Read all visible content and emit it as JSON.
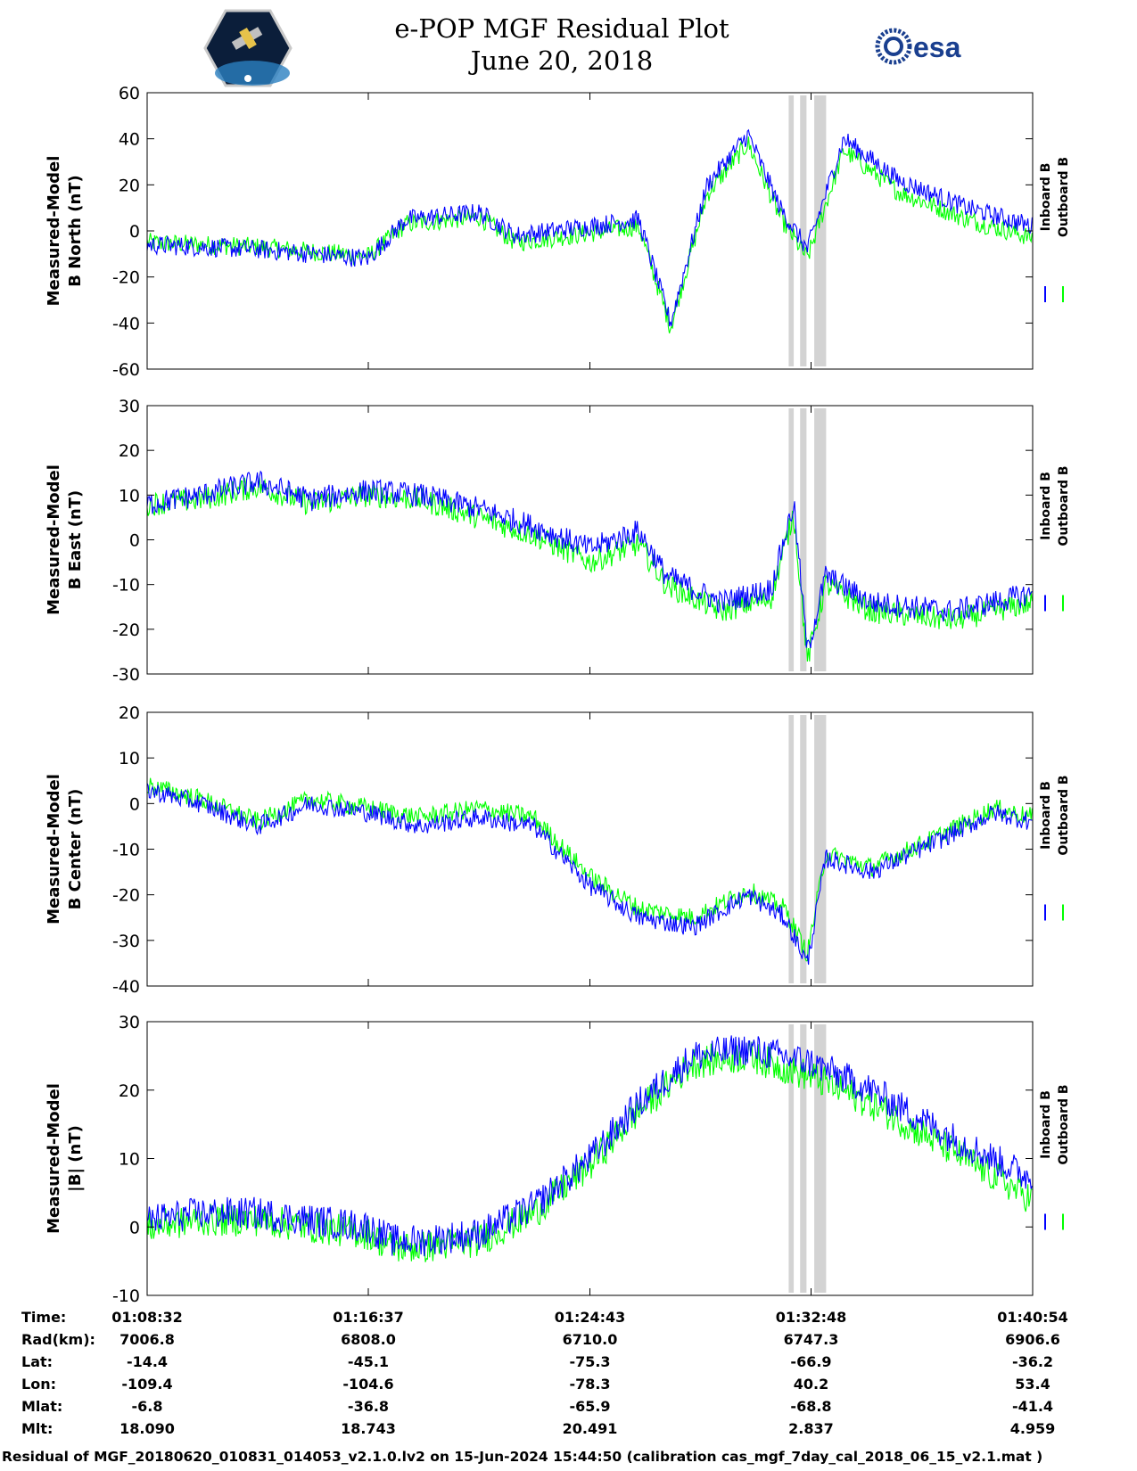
{
  "title": {
    "line1": "e-POP MGF Residual Plot",
    "line2": "June 20, 2018"
  },
  "logos": {
    "left": "cassiope-mission-logo",
    "right_text": "esa"
  },
  "colors": {
    "inboard": "#0000ff",
    "outboard": "#00ff00",
    "shade": "#d3d3d3"
  },
  "chart_data": [
    {
      "type": "line",
      "ylabel": [
        "Measured-Model",
        "B North (nT)"
      ],
      "ylim": [
        -60,
        60
      ],
      "yticks": [
        "60",
        "40",
        "20",
        "0",
        "-20",
        "-40",
        "-60"
      ],
      "legend": [
        "Inboard B",
        "Outboard B"
      ],
      "x": [
        "01:08:32",
        "01:12:35",
        "01:16:37",
        "01:18:00",
        "01:20:40",
        "01:22:00",
        "01:24:43",
        "01:26:30",
        "01:27:40",
        "01:29:00",
        "01:30:30",
        "01:31:40",
        "01:32:40",
        "01:34:00",
        "01:36:00",
        "01:38:30",
        "01:40:54"
      ],
      "series": [
        {
          "name": "Inboard B",
          "values": [
            -6,
            -8,
            -12,
            5,
            8,
            -2,
            2,
            5,
            -40,
            20,
            42,
            10,
            -8,
            40,
            22,
            10,
            2
          ]
        },
        {
          "name": "Outboard B",
          "values": [
            -5,
            -7,
            -11,
            3,
            6,
            -5,
            -1,
            2,
            -42,
            16,
            38,
            6,
            -12,
            35,
            17,
            5,
            -3
          ]
        }
      ],
      "shaded_intervals": [
        [
          "01:31:59",
          "01:32:10"
        ],
        [
          "01:32:24",
          "01:32:38"
        ],
        [
          "01:32:55",
          "01:33:21"
        ]
      ]
    },
    {
      "type": "line",
      "ylabel": [
        "Measured-Model",
        "B East (nT)"
      ],
      "ylim": [
        -30,
        30
      ],
      "yticks": [
        "30",
        "20",
        "10",
        "0",
        "-10",
        "-20",
        "-30"
      ],
      "legend": [
        "Inboard B",
        "Outboard B"
      ],
      "x": [
        "01:08:32",
        "01:10:30",
        "01:12:35",
        "01:14:30",
        "01:16:37",
        "01:18:30",
        "01:20:40",
        "01:22:40",
        "01:24:43",
        "01:26:30",
        "01:27:30",
        "01:29:30",
        "01:31:20",
        "01:32:10",
        "01:32:40",
        "01:33:20",
        "01:35:00",
        "01:38:00",
        "01:40:54"
      ],
      "series": [
        {
          "name": "Inboard B",
          "values": [
            8,
            10,
            13,
            9,
            11,
            10,
            7,
            3,
            -2,
            2,
            -8,
            -14,
            -11,
            8,
            -25,
            -8,
            -14,
            -16,
            -12
          ]
        },
        {
          "name": "Outboard B",
          "values": [
            8,
            9,
            12,
            8,
            10,
            9,
            5,
            1,
            -5,
            -1,
            -10,
            -16,
            -13,
            6,
            -27,
            -10,
            -16,
            -18,
            -14
          ]
        }
      ],
      "shaded_intervals": [
        [
          "01:31:59",
          "01:32:10"
        ],
        [
          "01:32:24",
          "01:32:38"
        ],
        [
          "01:32:55",
          "01:33:21"
        ]
      ]
    },
    {
      "type": "line",
      "ylabel": [
        "Measured-Model",
        "B Center (nT)"
      ],
      "ylim": [
        -40,
        20
      ],
      "yticks": [
        "20",
        "10",
        "0",
        "-10",
        "-20",
        "-30",
        "-40"
      ],
      "legend": [
        "Inboard B",
        "Outboard B"
      ],
      "x": [
        "01:08:32",
        "01:10:30",
        "01:12:35",
        "01:14:30",
        "01:16:37",
        "01:18:30",
        "01:20:40",
        "01:22:40",
        "01:24:43",
        "01:26:30",
        "01:28:30",
        "01:30:30",
        "01:31:50",
        "01:32:40",
        "01:33:20",
        "01:35:00",
        "01:37:30",
        "01:39:30",
        "01:40:54"
      ],
      "series": [
        {
          "name": "Inboard B",
          "values": [
            3,
            0,
            -5,
            0,
            -2,
            -5,
            -3,
            -5,
            -18,
            -25,
            -27,
            -20,
            -25,
            -35,
            -12,
            -15,
            -8,
            -2,
            -4
          ]
        },
        {
          "name": "Outboard B",
          "values": [
            4,
            1,
            -4,
            1,
            -1,
            -3,
            -1,
            -3,
            -16,
            -23,
            -25,
            -19,
            -23,
            -33,
            -11,
            -14,
            -7,
            -1,
            -3
          ]
        }
      ],
      "shaded_intervals": [
        [
          "01:31:59",
          "01:32:10"
        ],
        [
          "01:32:24",
          "01:32:38"
        ],
        [
          "01:32:55",
          "01:33:21"
        ]
      ]
    },
    {
      "type": "line",
      "ylabel": [
        "Measured-Model",
        "|B| (nT)"
      ],
      "ylim": [
        -10,
        30
      ],
      "yticks": [
        "30",
        "20",
        "10",
        "0",
        "-10"
      ],
      "legend": [
        "Inboard B",
        "Outboard B"
      ],
      "x": [
        "01:08:32",
        "01:10:30",
        "01:12:35",
        "01:14:30",
        "01:16:37",
        "01:17:30",
        "01:18:30",
        "01:20:40",
        "01:22:40",
        "01:24:43",
        "01:26:30",
        "01:28:30",
        "01:30:30",
        "01:32:48",
        "01:35:00",
        "01:38:00",
        "01:40:54"
      ],
      "series": [
        {
          "name": "Inboard B",
          "values": [
            1,
            2,
            2,
            1,
            0,
            -2,
            -2,
            -1,
            3,
            10,
            18,
            25,
            26,
            24,
            20,
            13,
            7
          ]
        },
        {
          "name": "Outboard B",
          "values": [
            0,
            1,
            1,
            0,
            -1,
            -3,
            -3,
            -2,
            2,
            9,
            17,
            24,
            25,
            22,
            18,
            11,
            4
          ]
        }
      ],
      "shaded_intervals": [
        [
          "01:31:59",
          "01:32:10"
        ],
        [
          "01:32:24",
          "01:32:38"
        ],
        [
          "01:32:55",
          "01:33:21"
        ]
      ]
    }
  ],
  "orbit_table": {
    "labels": [
      "Time:",
      "Rad(km):",
      "Lat:",
      "Lon:",
      "Mlat:",
      "Mlt:"
    ],
    "columns": [
      [
        "01:08:32",
        "7006.8",
        "-14.4",
        "-109.4",
        "-6.8",
        "18.090"
      ],
      [
        "01:16:37",
        "6808.0",
        "-45.1",
        "-104.6",
        "-36.8",
        "18.743"
      ],
      [
        "01:24:43",
        "6710.0",
        "-75.3",
        "-78.3",
        "-65.9",
        "20.491"
      ],
      [
        "01:32:48",
        "6747.3",
        "-66.9",
        "40.2",
        "-68.8",
        "2.837"
      ],
      [
        "01:40:54",
        "6906.6",
        "-36.2",
        "53.4",
        "-41.4",
        "4.959"
      ]
    ]
  },
  "footer": "Residual of MGF_20180620_010831_014053_v2.1.0.lv2 on 15-Jun-2024 15:44:50 (calibration cas_mgf_7day_cal_2018_06_15_v2.1.mat )"
}
